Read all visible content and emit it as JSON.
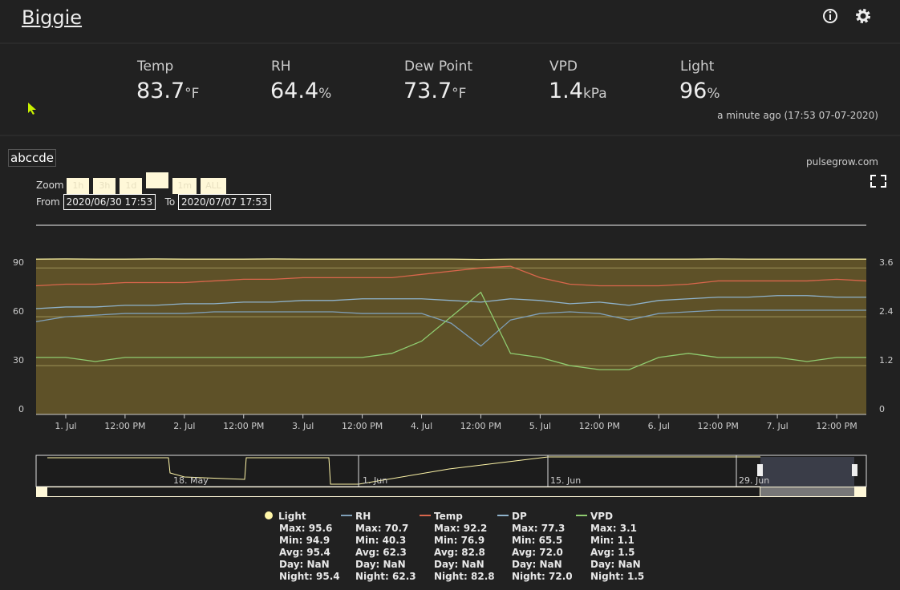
{
  "header": {
    "title": "Biggie"
  },
  "metrics": [
    {
      "label": "Temp",
      "value": "83.7",
      "unit": "°F"
    },
    {
      "label": "RH",
      "value": "64.4",
      "unit": "%"
    },
    {
      "label": "Dew Point",
      "value": "73.7",
      "unit": "°F"
    },
    {
      "label": "VPD",
      "value": "1.4",
      "unit": "kPa"
    },
    {
      "label": "Light",
      "value": "96",
      "unit": "%"
    }
  ],
  "updated": "a minute ago (17:53 07-07-2020)",
  "device_name": "abccde",
  "brand": "pulsegrow.com",
  "controls": {
    "zoom_label": "Zoom",
    "zoom_buttons": [
      "1h",
      "3h",
      "1d",
      "1m",
      "ALL"
    ],
    "from_label": "From",
    "from": "2020/06/30 17:53",
    "to_label": "To",
    "to": "2020/07/07 17:53"
  },
  "navigator": {
    "labels": [
      "18. May",
      "1. Jun",
      "15. Jun",
      "29. Jun"
    ]
  },
  "chart_data": {
    "type": "line",
    "categories": [
      null,
      "1. Jul",
      null,
      "12:00 PM",
      null,
      "2. Jul",
      null,
      "12:00 PM",
      null,
      "3. Jul",
      null,
      "12:00 PM",
      null,
      "4. Jul",
      null,
      "12:00 PM",
      null,
      "5. Jul",
      null,
      "12:00 PM",
      null,
      "6. Jul",
      null,
      "12:00 PM",
      null,
      "7. Jul",
      null,
      "12:00 PM",
      null
    ],
    "ylim": [
      0,
      96
    ],
    "yticks": [
      0,
      30,
      60,
      90
    ],
    "y2lim": [
      0,
      3.84
    ],
    "y2ticks": [
      0,
      1.2,
      2.4,
      3.6
    ],
    "grid": true,
    "series": [
      {
        "name": "Light",
        "color": "#fff6a8",
        "fill": "#5e5128",
        "area": true,
        "values": [
          95.4,
          95.5,
          95.4,
          95.4,
          95.5,
          95.4,
          95.4,
          95.4,
          95.5,
          95.4,
          95.4,
          95.4,
          95.4,
          95.4,
          95.4,
          95.2,
          95.4,
          95.4,
          95.4,
          95.4,
          95.4,
          95.4,
          95.4,
          95.5,
          95.4,
          95.4,
          95.4,
          95.4,
          95.4
        ],
        "stats": [
          "Max: 95.6",
          "Min: 94.9",
          "Avg: 95.4",
          "Day: NaN",
          "Night: 95.4"
        ]
      },
      {
        "name": "RH",
        "color": "#7f9fb8",
        "values": [
          57,
          60,
          61,
          62,
          62,
          62,
          63,
          63,
          63,
          63,
          63,
          62,
          62,
          62,
          56,
          42,
          58,
          62,
          63,
          62,
          58,
          62,
          63,
          64,
          64,
          64,
          64,
          64,
          64
        ],
        "stats": [
          "Max: 70.7",
          "Min: 40.3",
          "Avg: 62.3",
          "Day: NaN",
          "Night: 62.3"
        ]
      },
      {
        "name": "Temp",
        "color": "#d9664c",
        "values": [
          79,
          80,
          80,
          81,
          81,
          81,
          82,
          83,
          83,
          84,
          84,
          84,
          84,
          86,
          88,
          90,
          91,
          84,
          80,
          79,
          79,
          79,
          80,
          82,
          82,
          82,
          82,
          83,
          82
        ],
        "stats": [
          "Max: 92.2",
          "Min: 76.9",
          "Avg: 82.8",
          "Day: NaN",
          "Night: 82.8"
        ]
      },
      {
        "name": "DP",
        "color": "#8fb3cc",
        "values": [
          65,
          66,
          66,
          67,
          67,
          68,
          68,
          69,
          69,
          70,
          70,
          71,
          71,
          71,
          70,
          69,
          71,
          70,
          68,
          69,
          67,
          70,
          71,
          72,
          72,
          73,
          73,
          72,
          72
        ],
        "stats": [
          "Max: 77.3",
          "Min: 65.5",
          "Avg: 72.0",
          "Day: NaN",
          "Night: 72.0"
        ]
      },
      {
        "name": "VPD",
        "color": "#8fcc70",
        "axis": "y2",
        "values": [
          1.4,
          1.4,
          1.3,
          1.4,
          1.4,
          1.4,
          1.4,
          1.4,
          1.4,
          1.4,
          1.4,
          1.4,
          1.5,
          1.8,
          2.4,
          3.0,
          1.5,
          1.4,
          1.2,
          1.1,
          1.1,
          1.4,
          1.5,
          1.4,
          1.4,
          1.4,
          1.3,
          1.4,
          1.4
        ],
        "stats": [
          "Max: 3.1",
          "Min: 1.1",
          "Avg: 1.5",
          "Day: NaN",
          "Night: 1.5"
        ]
      }
    ]
  }
}
